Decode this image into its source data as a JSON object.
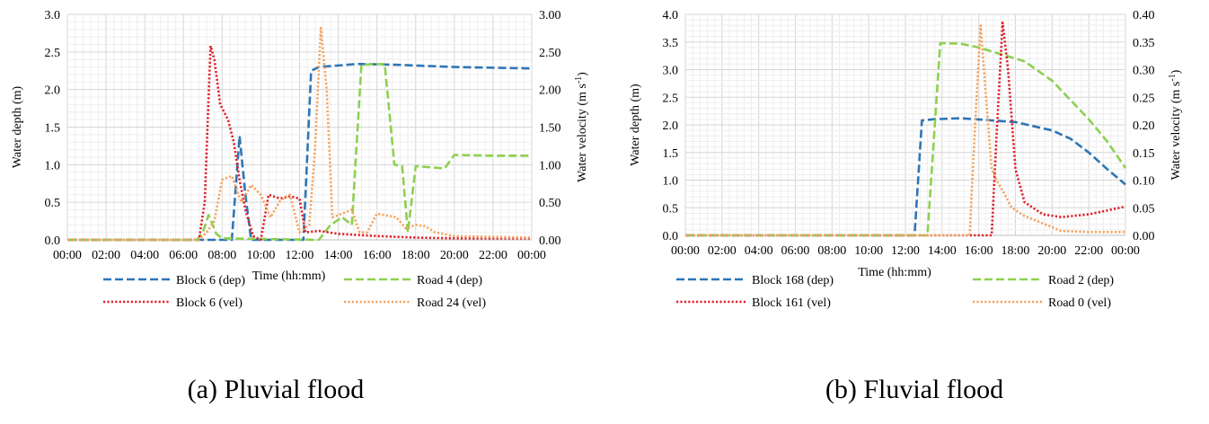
{
  "chart_data": [
    {
      "type": "line",
      "caption": "(a) Pluvial flood",
      "xlabel": "Time (hh:mm)",
      "ylabel": "Water depth (m)",
      "ylabel2": "Water velocity (m s-1)",
      "ylabel2_base": "Water velocity (m s",
      "ylabel2_sup": "-1",
      "ylabel2_end": ")",
      "xlim": [
        0,
        24
      ],
      "xticks": [
        "00:00",
        "02:00",
        "04:00",
        "06:00",
        "08:00",
        "10:00",
        "12:00",
        "14:00",
        "16:00",
        "18:00",
        "20:00",
        "22:00",
        "00:00"
      ],
      "ylim": [
        0,
        3
      ],
      "yticks": [
        "0.0",
        "0.5",
        "1.0",
        "1.5",
        "2.0",
        "2.5",
        "3.0"
      ],
      "ylim2": [
        0,
        3
      ],
      "yticks2": [
        "0.00",
        "0.50",
        "1.00",
        "1.50",
        "2.00",
        "2.50",
        "3.00"
      ],
      "grid": true,
      "legend_position": "bottom",
      "series": [
        {
          "name": "Block 6 (dep)",
          "axis": "left",
          "style": "dashed",
          "color": "#2e75b6",
          "points": [
            [
              0,
              0
            ],
            [
              8.5,
              0
            ],
            [
              8.9,
              1.38
            ],
            [
              9.2,
              0.6
            ],
            [
              9.5,
              0
            ],
            [
              12.2,
              0
            ],
            [
              12.6,
              2.25
            ],
            [
              13,
              2.3
            ],
            [
              15,
              2.34
            ],
            [
              17,
              2.33
            ],
            [
              20,
              2.3
            ],
            [
              24,
              2.28
            ]
          ]
        },
        {
          "name": "Road 4 (dep)",
          "axis": "left",
          "style": "dashed",
          "color": "#8dd04f",
          "points": [
            [
              0,
              0
            ],
            [
              6.7,
              0
            ],
            [
              7.0,
              0.1
            ],
            [
              7.3,
              0.33
            ],
            [
              7.7,
              0.08
            ],
            [
              8.0,
              0.02
            ],
            [
              13.0,
              0
            ],
            [
              13.6,
              0.2
            ],
            [
              14.2,
              0.3
            ],
            [
              14.7,
              0.2
            ],
            [
              15.2,
              2.33
            ],
            [
              16.4,
              2.34
            ],
            [
              16.9,
              1.0
            ],
            [
              17.3,
              0.98
            ],
            [
              17.6,
              0.1
            ],
            [
              18.0,
              0.98
            ],
            [
              19.5,
              0.95
            ],
            [
              20.0,
              1.13
            ],
            [
              22,
              1.12
            ],
            [
              24,
              1.12
            ]
          ]
        },
        {
          "name": "Block 6 (vel)",
          "axis": "right",
          "style": "dotted",
          "color": "#e0202a",
          "points": [
            [
              0,
              0
            ],
            [
              6.8,
              0
            ],
            [
              7.1,
              0.5
            ],
            [
              7.4,
              2.58
            ],
            [
              7.6,
              2.4
            ],
            [
              7.9,
              1.8
            ],
            [
              8.3,
              1.6
            ],
            [
              8.6,
              1.3
            ],
            [
              8.9,
              0.8
            ],
            [
              9.2,
              0.4
            ],
            [
              9.6,
              0.05
            ],
            [
              10.0,
              0
            ],
            [
              10.4,
              0.6
            ],
            [
              11.0,
              0.55
            ],
            [
              11.5,
              0.58
            ],
            [
              12.0,
              0.55
            ],
            [
              12.3,
              0.1
            ],
            [
              13,
              0.12
            ],
            [
              14,
              0.08
            ],
            [
              16,
              0.05
            ],
            [
              18,
              0.03
            ],
            [
              20,
              0.02
            ],
            [
              24,
              0.02
            ]
          ]
        },
        {
          "name": "Road 24 (vel)",
          "axis": "right",
          "style": "dotted",
          "color": "#f4a460",
          "points": [
            [
              0,
              0
            ],
            [
              6.8,
              0
            ],
            [
              7.2,
              0.1
            ],
            [
              7.6,
              0.25
            ],
            [
              8.0,
              0.8
            ],
            [
              8.5,
              0.85
            ],
            [
              9.0,
              0.5
            ],
            [
              9.5,
              0.73
            ],
            [
              10.0,
              0.6
            ],
            [
              10.5,
              0.3
            ],
            [
              11.0,
              0.52
            ],
            [
              11.5,
              0.6
            ],
            [
              12.0,
              0.1
            ],
            [
              12.5,
              0.2
            ],
            [
              12.8,
              1.2
            ],
            [
              13.1,
              2.82
            ],
            [
              13.4,
              2.0
            ],
            [
              13.7,
              0.3
            ],
            [
              14.2,
              0.35
            ],
            [
              14.7,
              0.4
            ],
            [
              15.1,
              0.1
            ],
            [
              15.5,
              0.1
            ],
            [
              16.0,
              0.35
            ],
            [
              17.0,
              0.3
            ],
            [
              17.5,
              0.15
            ],
            [
              18.0,
              0.2
            ],
            [
              18.5,
              0.18
            ],
            [
              19.0,
              0.1
            ],
            [
              20,
              0.05
            ],
            [
              22,
              0.04
            ],
            [
              24,
              0.03
            ]
          ]
        }
      ]
    },
    {
      "type": "line",
      "caption": "(b) Fluvial flood",
      "xlabel": "Time (hh:mm)",
      "ylabel": "Water depth (m)",
      "ylabel2": "Water velocity (m s-1)",
      "ylabel2_base": "Water velocity (m s",
      "ylabel2_sup": "-1",
      "ylabel2_end": ")",
      "xlim": [
        0,
        24
      ],
      "xticks": [
        "00:00",
        "02:00",
        "04:00",
        "06:00",
        "08:00",
        "10:00",
        "12:00",
        "14:00",
        "16:00",
        "18:00",
        "20:00",
        "22:00",
        "00:00"
      ],
      "ylim": [
        0,
        4
      ],
      "yticks": [
        "0.0",
        "0.5",
        "1.0",
        "1.5",
        "2.0",
        "2.5",
        "3.0",
        "3.5",
        "4.0"
      ],
      "ylim2": [
        0,
        0.4
      ],
      "yticks2": [
        "0.00",
        "0.05",
        "0.10",
        "0.15",
        "0.20",
        "0.25",
        "0.30",
        "0.35",
        "0.40"
      ],
      "grid": true,
      "legend_position": "bottom",
      "series": [
        {
          "name": "Block 168 (dep)",
          "axis": "left",
          "style": "dashed",
          "color": "#2e75b6",
          "points": [
            [
              0,
              0
            ],
            [
              12.5,
              0
            ],
            [
              12.9,
              2.08
            ],
            [
              13.5,
              2.1
            ],
            [
              15,
              2.12
            ],
            [
              18,
              2.05
            ],
            [
              20,
              1.9
            ],
            [
              21,
              1.75
            ],
            [
              22,
              1.5
            ],
            [
              23,
              1.2
            ],
            [
              24,
              0.92
            ]
          ]
        },
        {
          "name": "Road 2 (dep)",
          "axis": "left",
          "style": "dashed",
          "color": "#8dd04f",
          "points": [
            [
              0,
              0
            ],
            [
              13.2,
              0
            ],
            [
              13.9,
              3.48
            ],
            [
              15,
              3.47
            ],
            [
              16,
              3.4
            ],
            [
              18.5,
              3.15
            ],
            [
              20,
              2.8
            ],
            [
              22,
              2.1
            ],
            [
              23,
              1.7
            ],
            [
              24,
              1.22
            ]
          ]
        },
        {
          "name": "Block 161 (vel)",
          "axis": "right",
          "style": "dotted",
          "color": "#e0202a",
          "points": [
            [
              0,
              0
            ],
            [
              16.7,
              0
            ],
            [
              17.0,
              0.2
            ],
            [
              17.3,
              0.385
            ],
            [
              17.6,
              0.3
            ],
            [
              18.0,
              0.12
            ],
            [
              18.5,
              0.06
            ],
            [
              19.5,
              0.038
            ],
            [
              20.5,
              0.033
            ],
            [
              22,
              0.038
            ],
            [
              23,
              0.045
            ],
            [
              24,
              0.052
            ]
          ]
        },
        {
          "name": "Road 0 (vel)",
          "axis": "right",
          "style": "dotted",
          "color": "#f4a460",
          "points": [
            [
              0,
              0
            ],
            [
              15.5,
              0
            ],
            [
              15.8,
              0.2
            ],
            [
              16.1,
              0.38
            ],
            [
              16.4,
              0.25
            ],
            [
              16.7,
              0.12
            ],
            [
              17.0,
              0.098
            ],
            [
              17.4,
              0.075
            ],
            [
              17.8,
              0.05
            ],
            [
              18.5,
              0.035
            ],
            [
              20,
              0.015
            ],
            [
              20.5,
              0.008
            ],
            [
              22,
              0.006
            ],
            [
              24,
              0.006
            ]
          ]
        }
      ]
    }
  ]
}
